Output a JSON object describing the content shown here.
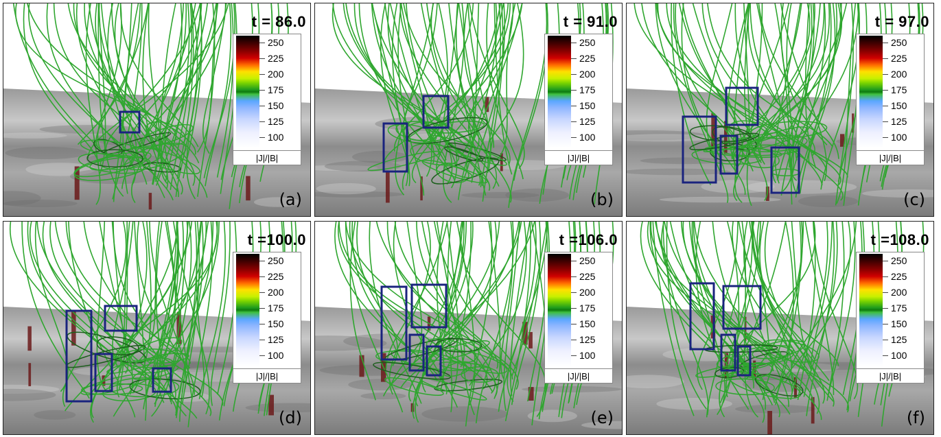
{
  "panels": [
    {
      "time": "t = 86.0",
      "letter": "(a)"
    },
    {
      "time": "t = 91.0",
      "letter": "(b)"
    },
    {
      "time": "t = 97.0",
      "letter": "(c)"
    },
    {
      "time": "t =100.0",
      "letter": "(d)"
    },
    {
      "time": "t =106.0",
      "letter": "(e)"
    },
    {
      "time": "t =108.0",
      "letter": "(f)"
    }
  ],
  "colorbar": {
    "ticks": [
      "250",
      "225",
      "200",
      "175",
      "150",
      "125",
      "100"
    ],
    "label": "|J|/|B|"
  },
  "colors": {
    "field_lines": "#2fa62f",
    "surface": "#8a8a8a",
    "current_sheets": "#6b1a1a",
    "highlight_boxes": "#1a237e"
  }
}
